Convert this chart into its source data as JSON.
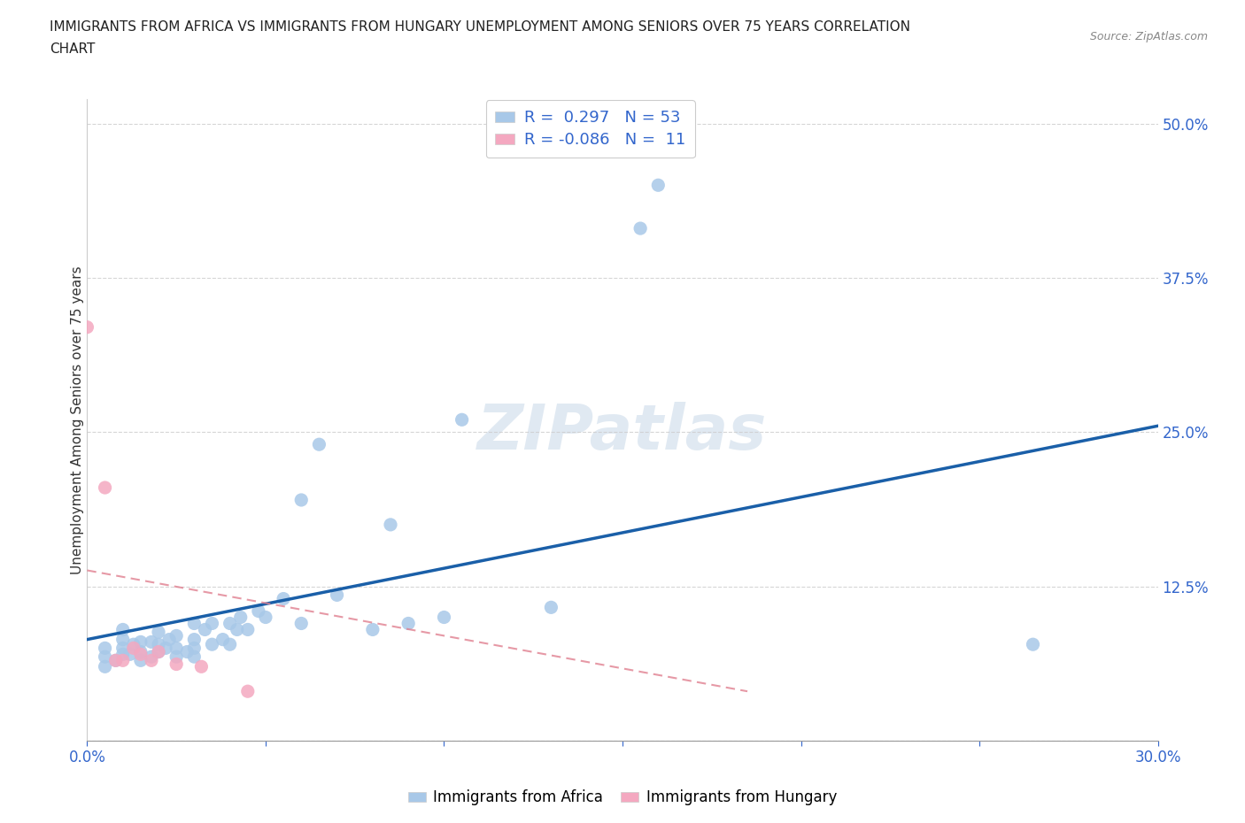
{
  "title_line1": "IMMIGRANTS FROM AFRICA VS IMMIGRANTS FROM HUNGARY UNEMPLOYMENT AMONG SENIORS OVER 75 YEARS CORRELATION",
  "title_line2": "CHART",
  "source": "Source: ZipAtlas.com",
  "ylabel": "Unemployment Among Seniors over 75 years",
  "xlim": [
    0.0,
    0.3
  ],
  "ylim": [
    0.0,
    0.52
  ],
  "yticks": [
    0.0,
    0.125,
    0.25,
    0.375,
    0.5
  ],
  "ytick_labels": [
    "",
    "12.5%",
    "25.0%",
    "37.5%",
    "50.0%"
  ],
  "xticks": [
    0.0,
    0.05,
    0.1,
    0.15,
    0.2,
    0.25,
    0.3
  ],
  "xtick_labels": [
    "0.0%",
    "",
    "",
    "",
    "",
    "",
    "30.0%"
  ],
  "africa_color": "#a8c8e8",
  "hungary_color": "#f4a8c0",
  "africa_line_color": "#1a5fa8",
  "hungary_line_color": "#e08090",
  "africa_R": 0.297,
  "africa_N": 53,
  "hungary_R": -0.086,
  "hungary_N": 11,
  "watermark": "ZIPatlas",
  "africa_scatter_x": [
    0.005,
    0.005,
    0.005,
    0.008,
    0.01,
    0.01,
    0.01,
    0.01,
    0.012,
    0.013,
    0.015,
    0.015,
    0.015,
    0.018,
    0.018,
    0.02,
    0.02,
    0.02,
    0.022,
    0.023,
    0.025,
    0.025,
    0.025,
    0.028,
    0.03,
    0.03,
    0.03,
    0.03,
    0.033,
    0.035,
    0.035,
    0.038,
    0.04,
    0.04,
    0.042,
    0.043,
    0.045,
    0.048,
    0.05,
    0.055,
    0.06,
    0.06,
    0.065,
    0.07,
    0.08,
    0.085,
    0.09,
    0.1,
    0.105,
    0.13,
    0.155,
    0.16,
    0.265
  ],
  "africa_scatter_y": [
    0.06,
    0.068,
    0.075,
    0.065,
    0.07,
    0.075,
    0.082,
    0.09,
    0.07,
    0.078,
    0.065,
    0.072,
    0.08,
    0.068,
    0.08,
    0.072,
    0.078,
    0.088,
    0.075,
    0.082,
    0.068,
    0.075,
    0.085,
    0.072,
    0.068,
    0.075,
    0.082,
    0.095,
    0.09,
    0.078,
    0.095,
    0.082,
    0.078,
    0.095,
    0.09,
    0.1,
    0.09,
    0.105,
    0.1,
    0.115,
    0.095,
    0.195,
    0.24,
    0.118,
    0.09,
    0.175,
    0.095,
    0.1,
    0.26,
    0.108,
    0.415,
    0.45,
    0.078
  ],
  "hungary_scatter_x": [
    0.0,
    0.005,
    0.008,
    0.01,
    0.013,
    0.015,
    0.018,
    0.02,
    0.025,
    0.032,
    0.045
  ],
  "hungary_scatter_y": [
    0.335,
    0.205,
    0.065,
    0.065,
    0.075,
    0.07,
    0.065,
    0.072,
    0.062,
    0.06,
    0.04
  ],
  "africa_trendline_x": [
    0.0,
    0.3
  ],
  "africa_trendline_y": [
    0.082,
    0.255
  ],
  "hungary_trendline_x": [
    0.0,
    0.185
  ],
  "hungary_trendline_y": [
    0.138,
    0.04
  ]
}
